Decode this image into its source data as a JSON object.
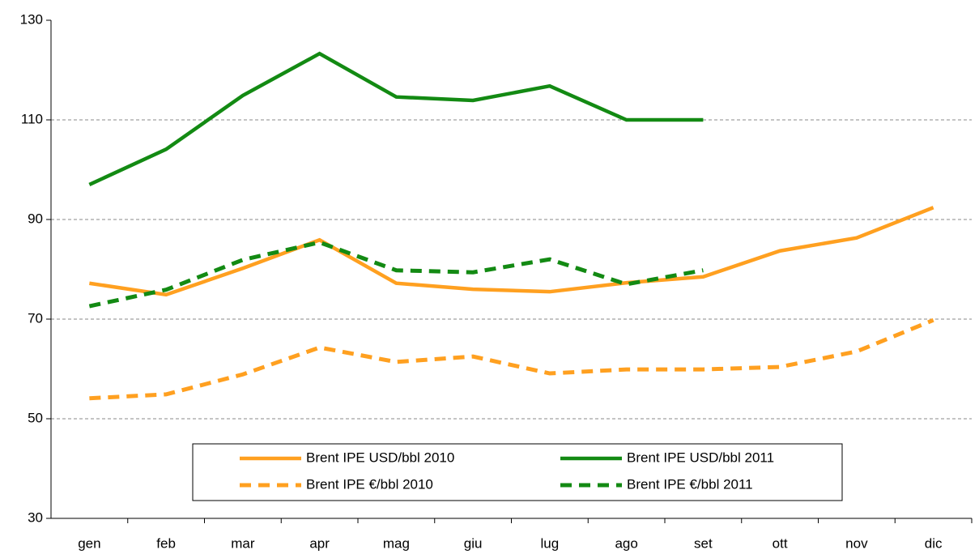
{
  "chart_data": {
    "type": "line",
    "categories": [
      "gen",
      "feb",
      "mar",
      "apr",
      "mag",
      "giu",
      "lug",
      "ago",
      "set",
      "ott",
      "nov",
      "dic"
    ],
    "series": [
      {
        "name": "Brent IPE USD/bbl 2010",
        "color": "#ffa020",
        "dashed": false,
        "values": [
          77.2,
          74.9,
          80.2,
          85.9,
          77.2,
          76.0,
          75.5,
          77.3,
          78.5,
          83.7,
          86.3,
          92.4
        ]
      },
      {
        "name": "Brent IPE USD/bbl 2011",
        "color": "#138a13",
        "dashed": false,
        "values": [
          97.0,
          104.1,
          114.9,
          123.3,
          114.6,
          113.9,
          116.8,
          110.0,
          110.0,
          null,
          null,
          null
        ]
      },
      {
        "name": "Brent IPE €/bbl 2010",
        "color": "#ffa020",
        "dashed": true,
        "values": [
          54.1,
          54.9,
          58.9,
          64.3,
          61.4,
          62.5,
          59.1,
          59.9,
          59.9,
          60.4,
          63.5,
          69.8
        ]
      },
      {
        "name": "Brent IPE €/bbl 2011",
        "color": "#138a13",
        "dashed": true,
        "values": [
          72.6,
          75.9,
          81.9,
          85.4,
          79.8,
          79.4,
          82.0,
          77.0,
          79.8,
          null,
          null,
          null
        ]
      }
    ],
    "ylim": [
      30,
      130
    ],
    "yticks": [
      30,
      50,
      70,
      90,
      110,
      130
    ],
    "grid": true
  }
}
